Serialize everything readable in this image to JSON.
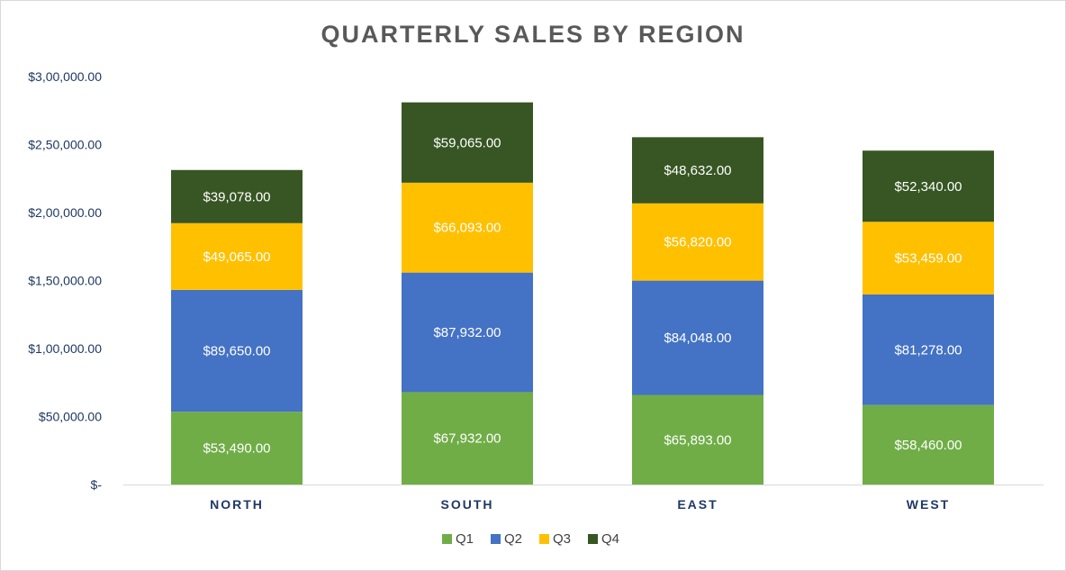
{
  "chart_data": {
    "type": "bar",
    "stacked": true,
    "title": "QUARTERLY SALES BY REGION",
    "categories": [
      "NORTH",
      "SOUTH",
      "EAST",
      "WEST"
    ],
    "series": [
      {
        "name": "Q1",
        "color": "#70ad47",
        "values": [
          53490,
          67932,
          65893,
          58460
        ],
        "labels": [
          "$53,490.00",
          "$67,932.00",
          "$65,893.00",
          "$58,460.00"
        ]
      },
      {
        "name": "Q2",
        "color": "#4472c4",
        "values": [
          89650,
          87932,
          84048,
          81278
        ],
        "labels": [
          "$89,650.00",
          "$87,932.00",
          "$84,048.00",
          "$81,278.00"
        ]
      },
      {
        "name": "Q3",
        "color": "#ffc000",
        "values": [
          49065,
          66093,
          56820,
          53459
        ],
        "labels": [
          "$49,065.00",
          "$66,093.00",
          "$56,820.00",
          "$53,459.00"
        ]
      },
      {
        "name": "Q4",
        "color": "#375623",
        "values": [
          39078,
          59065,
          48632,
          52340
        ],
        "labels": [
          "$39,078.00",
          "$59,065.00",
          "$48,632.00",
          "$52,340.00"
        ]
      }
    ],
    "ylim": [
      0,
      300000
    ],
    "yticks": [
      {
        "value": 0,
        "label": "$-"
      },
      {
        "value": 50000,
        "label": "$50,000.00"
      },
      {
        "value": 100000,
        "label": "$1,00,000.00"
      },
      {
        "value": 150000,
        "label": "$1,50,000.00"
      },
      {
        "value": 200000,
        "label": "$2,00,000.00"
      },
      {
        "value": 250000,
        "label": "$2,50,000.00"
      },
      {
        "value": 300000,
        "label": "$3,00,000.00"
      }
    ],
    "grid": false,
    "legend": "bottom",
    "xlabel": "",
    "ylabel": ""
  }
}
